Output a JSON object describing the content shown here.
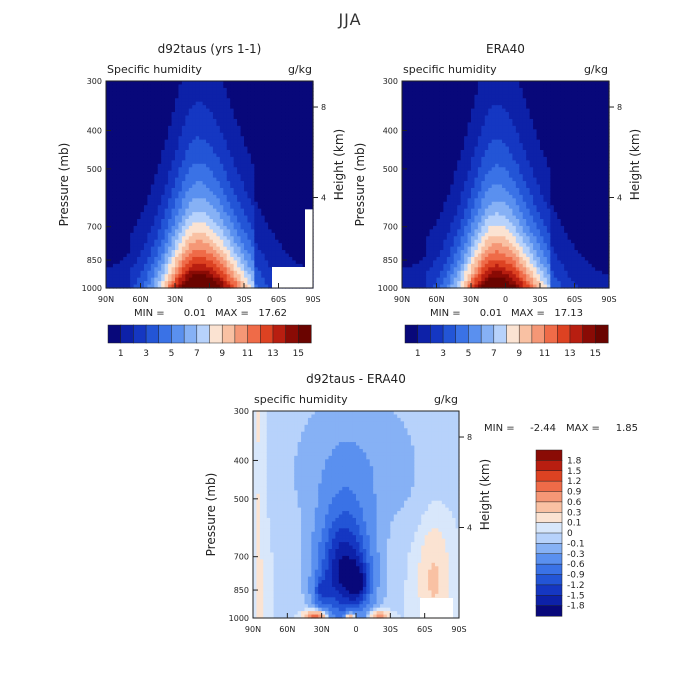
{
  "figure_title": "JJA",
  "chart_data": [
    {
      "id": "model",
      "type": "heatmap",
      "title": "d92taus (yrs 1-1)",
      "subtitle_left": "Specific humidity",
      "subtitle_right": "g/kg",
      "ylabel": "Pressure (mb)",
      "ylabel_right": "Height (km)",
      "x_ticks": [
        "90N",
        "60N",
        "30N",
        "0",
        "30S",
        "60S",
        "90S"
      ],
      "y_ticks": [
        "300",
        "400",
        "500",
        "700",
        "850",
        "1000"
      ],
      "y_tick_values": [
        300,
        400,
        500,
        700,
        850,
        1000
      ],
      "ylim": [
        300,
        1000
      ],
      "right_ticks": [
        "8",
        "4"
      ],
      "right_tick_km": [
        8,
        4
      ],
      "x_range": [
        90,
        -90
      ],
      "peak": {
        "lat": 10,
        "value": 17.6
      },
      "min_label": "MIN =",
      "min_value": "0.01",
      "max_label": "MAX =",
      "max_value": "17.62",
      "colorbar_labels": [
        "1",
        "3",
        "5",
        "7",
        "9",
        "11",
        "13",
        "15"
      ],
      "colorbar_levels": [
        1,
        2,
        3,
        4,
        5,
        6,
        7,
        8,
        9,
        10,
        11,
        12,
        13,
        14,
        15
      ]
    },
    {
      "id": "obs",
      "type": "heatmap",
      "title": "ERA40",
      "subtitle_left": "specific humidity",
      "subtitle_right": "g/kg",
      "ylabel": "Pressure (mb)",
      "ylabel_right": "Height (km)",
      "x_ticks": [
        "90N",
        "60N",
        "30N",
        "0",
        "30S",
        "60S",
        "90S"
      ],
      "y_ticks": [
        "300",
        "400",
        "500",
        "700",
        "850",
        "1000"
      ],
      "y_tick_values": [
        300,
        400,
        500,
        700,
        850,
        1000
      ],
      "ylim": [
        300,
        1000
      ],
      "right_ticks": [
        "8",
        "4"
      ],
      "right_tick_km": [
        8,
        4
      ],
      "x_range": [
        90,
        -90
      ],
      "peak": {
        "lat": 8,
        "value": 17.1
      },
      "min_label": "MIN =",
      "min_value": "0.01",
      "max_label": "MAX =",
      "max_value": "17.13",
      "colorbar_labels": [
        "1",
        "3",
        "5",
        "7",
        "9",
        "11",
        "13",
        "15"
      ],
      "colorbar_levels": [
        1,
        2,
        3,
        4,
        5,
        6,
        7,
        8,
        9,
        10,
        11,
        12,
        13,
        14,
        15
      ]
    },
    {
      "id": "diff",
      "type": "heatmap",
      "title": "d92taus - ERA40",
      "subtitle_left": "specific humidity",
      "subtitle_right": "g/kg",
      "ylabel": "Pressure (mb)",
      "ylabel_right": "Height (km)",
      "x_ticks": [
        "90N",
        "60N",
        "30N",
        "0",
        "30S",
        "60S",
        "90S"
      ],
      "y_ticks": [
        "300",
        "400",
        "500",
        "700",
        "850",
        "1000"
      ],
      "y_tick_values": [
        300,
        400,
        500,
        700,
        850,
        1000
      ],
      "ylim": [
        300,
        1000
      ],
      "right_ticks": [
        "8",
        "4"
      ],
      "right_tick_km": [
        8,
        4
      ],
      "x_range": [
        90,
        -90
      ],
      "min_label": "MIN =",
      "min_value": "-2.44",
      "max_label": "MAX =",
      "max_value": "1.85",
      "colorbar_labels": [
        "1.8",
        "1.5",
        "1.2",
        "0.9",
        "0.6",
        "0.3",
        "0.1",
        "0",
        "-0.1",
        "-0.3",
        "-0.6",
        "-0.9",
        "-1.2",
        "-1.5",
        "-1.8"
      ]
    }
  ],
  "colors": {
    "seq": [
      "#08087a",
      "#0d21a8",
      "#1537c2",
      "#2355d6",
      "#3a72e6",
      "#5a90ef",
      "#86b1f5",
      "#b7d2fb",
      "#fbe3d2",
      "#f9c1a3",
      "#f59776",
      "#ef6b48",
      "#dd4222",
      "#b81e10",
      "#8a0b05",
      "#6a0400"
    ],
    "div_top_to_bottom": [
      "#8a0b05",
      "#b81e10",
      "#dd4222",
      "#ef6b48",
      "#f59776",
      "#f9c1a3",
      "#fbe3d2",
      "#d8e7fb",
      "#b7d2fb",
      "#86b1f5",
      "#5a90ef",
      "#3a72e6",
      "#2355d6",
      "#1537c2",
      "#0d21a8",
      "#08087a"
    ],
    "diff_background": "#d6e6fb"
  }
}
